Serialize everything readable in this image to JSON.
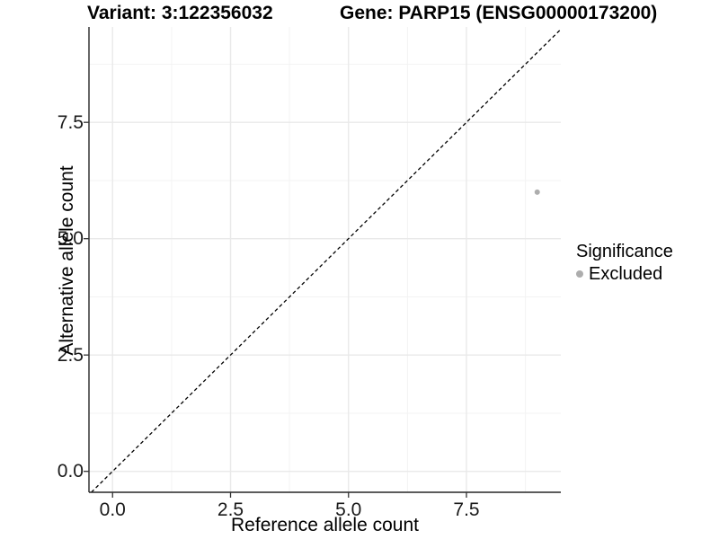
{
  "chart_data": {
    "type": "scatter",
    "title_left": "Variant: 3:122356032",
    "title_right": "Gene: PARP15 (ENSG00000173200)",
    "xlabel": "Reference allele count",
    "ylabel": "Alternative allele count",
    "xlim": [
      -0.5,
      9.5
    ],
    "ylim": [
      -0.45,
      9.55
    ],
    "x_ticks": {
      "values": [
        0,
        2.5,
        5,
        7.5
      ],
      "labels": [
        "0.0",
        "2.5",
        "5.0",
        "7.5"
      ]
    },
    "y_ticks": {
      "values": [
        0,
        2.5,
        5,
        7.5
      ],
      "labels": [
        "0.0",
        "2.5",
        "5.0",
        "7.5"
      ]
    },
    "x_minor": [
      1.25,
      3.75,
      6.25,
      8.75
    ],
    "y_minor": [
      1.25,
      3.75,
      6.25,
      8.75
    ],
    "grid": true,
    "reference_line": {
      "type": "identity",
      "style": "dashed",
      "color": "#000000"
    },
    "series": [
      {
        "name": "Excluded",
        "color": "#ADADAD",
        "point_radius": 3,
        "points": [
          {
            "x": 9,
            "y": 6
          }
        ]
      }
    ],
    "legend_title": "Significance",
    "legend_position": "right"
  },
  "colors": {
    "background": "#FFFFFF",
    "axis_line": "#262626",
    "tick_mark": "#333333",
    "grid_major": "#E9E9E9",
    "grid_minor": "#F3F3F3",
    "tick_text": "#1A1A1A",
    "title_text": "#000000"
  }
}
